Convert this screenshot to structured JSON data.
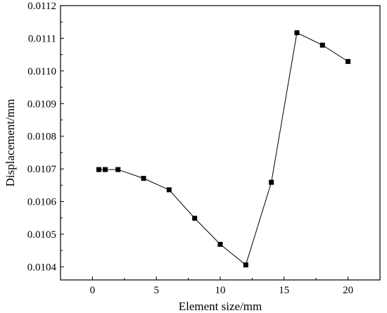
{
  "chart_data": {
    "type": "line",
    "xlabel": "Element size/mm",
    "ylabel": "Displacement/mm",
    "xlim": [
      -2.5,
      22.5
    ],
    "ylim": [
      0.01036,
      0.0112
    ],
    "x_ticks": [
      0,
      5,
      10,
      15,
      20
    ],
    "x_tick_labels": [
      "0",
      "5",
      "10",
      "15",
      "20"
    ],
    "y_ticks": [
      0.0104,
      0.0105,
      0.0106,
      0.0107,
      0.0108,
      0.0109,
      0.011,
      0.0111,
      0.0112
    ],
    "y_tick_labels": [
      "0.0104",
      "0.0105",
      "0.0106",
      "0.0107",
      "0.0108",
      "0.0109",
      "0.0110",
      "0.0111",
      "0.0112"
    ],
    "grid": false,
    "series": [
      {
        "marker": "square",
        "color": "#000000",
        "x": [
          0.5,
          1,
          2,
          4,
          6,
          8,
          10,
          12,
          14,
          16,
          18,
          20
        ],
        "y": [
          0.010698,
          0.010698,
          0.010698,
          0.010671,
          0.010636,
          0.010549,
          0.010469,
          0.010406,
          0.010659,
          0.011117,
          0.011079,
          0.011029
        ]
      }
    ]
  }
}
